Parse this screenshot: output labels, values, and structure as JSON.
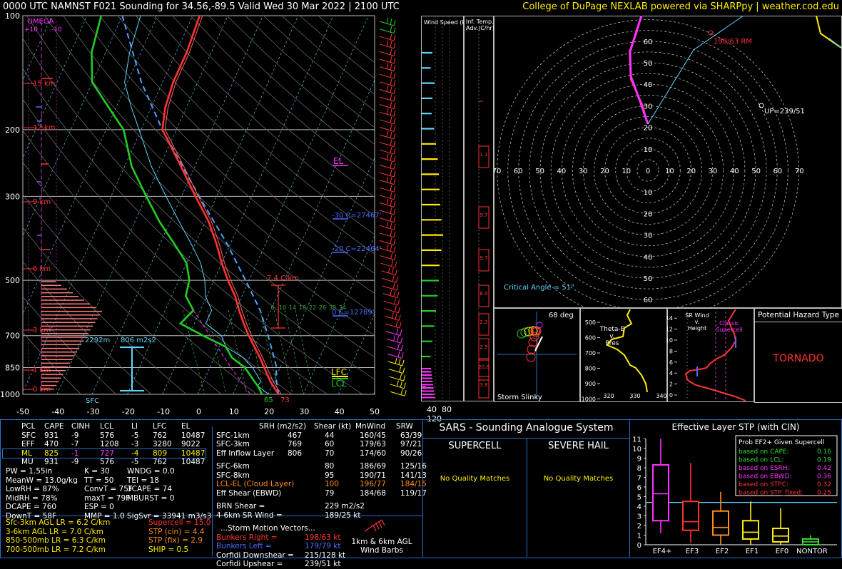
{
  "header": {
    "left": "0000 UTC NAMNST F021 Sounding for 34.56,-89.5 Valid  Wed 30 Mar 2022 | 2100 UTC",
    "right": "College of DuPage NEXLAB powered via SHARPpy | weather.cod.edu"
  },
  "chart_data": [
    {
      "type": "line",
      "name": "skew-t",
      "pressure_ticks": [
        "100",
        "200",
        "300",
        "500",
        "700",
        "850",
        "1000"
      ],
      "temp_ticks": [
        "-50",
        "-40",
        "-30",
        "-20",
        "-10",
        "0",
        "10",
        "20",
        "30",
        "40",
        "50"
      ],
      "height_labels": [
        "15 km",
        "12 km",
        "9 km",
        "6 km",
        "3 km",
        "1 km",
        "0 km"
      ],
      "omega_label": "OMEGA",
      "omega_ticks": [
        "+10",
        "-10"
      ],
      "annotations": {
        "lapse": "7.4 C/km",
        "el": "EL",
        "lfc": "LFC",
        "lcl": "LCL",
        "m30": "-30 C=27467'",
        "m20": "-20 C=22464'",
        "zero": "0 C=12789'",
        "srh_height": "2292m",
        "srh_value": "806 m2s2",
        "sfc": "SFC",
        "sfc_t": "73",
        "sfc_td": "65",
        "mixing": [
          "6",
          "10",
          "14",
          "18",
          "22",
          "26",
          "30",
          "34"
        ]
      },
      "temperature": [
        [
          1000,
          23
        ],
        [
          925,
          19
        ],
        [
          850,
          15.5
        ],
        [
          800,
          13
        ],
        [
          700,
          7
        ],
        [
          650,
          4
        ],
        [
          600,
          1
        ],
        [
          550,
          -2
        ],
        [
          500,
          -6
        ],
        [
          450,
          -10
        ],
        [
          400,
          -14
        ],
        [
          350,
          -19
        ],
        [
          300,
          -26
        ],
        [
          250,
          -34
        ],
        [
          200,
          -44
        ],
        [
          175,
          -46
        ],
        [
          150,
          -47
        ],
        [
          125,
          -47
        ],
        [
          100,
          -48
        ]
      ],
      "dewpoint": [
        [
          1000,
          18.3
        ],
        [
          950,
          16
        ],
        [
          925,
          14.5
        ],
        [
          850,
          10
        ],
        [
          800,
          5
        ],
        [
          750,
          2
        ],
        [
          700,
          -6
        ],
        [
          650,
          -14
        ],
        [
          600,
          -12
        ],
        [
          550,
          -16
        ],
        [
          500,
          -17
        ],
        [
          450,
          -20
        ],
        [
          400,
          -26
        ],
        [
          350,
          -33
        ],
        [
          300,
          -40
        ],
        [
          250,
          -48
        ],
        [
          200,
          -55
        ],
        [
          175,
          -62
        ],
        [
          150,
          -70
        ],
        [
          125,
          -74
        ],
        [
          100,
          -76
        ]
      ],
      "parcel": [
        [
          1000,
          23
        ],
        [
          900,
          20
        ],
        [
          850,
          19
        ],
        [
          800,
          17
        ],
        [
          700,
          12.5
        ],
        [
          600,
          7
        ],
        [
          500,
          -1
        ],
        [
          400,
          -11
        ],
        [
          300,
          -25
        ],
        [
          200,
          -44
        ],
        [
          150,
          -56
        ],
        [
          100,
          -70
        ]
      ]
    },
    {
      "type": "bar",
      "name": "wind-speed",
      "title": "Wind Speed (knots)",
      "ticks": [
        "40",
        "80",
        "120"
      ],
      "values": [
        30,
        25,
        36,
        30,
        28,
        35,
        40,
        45,
        48,
        50,
        52,
        55,
        60,
        55,
        50,
        48,
        45,
        40,
        35,
        30,
        25,
        20,
        12
      ]
    },
    {
      "type": "bar",
      "name": "inferred-temp-advection",
      "title": "Inf. Temp. Adv.(C/hr)",
      "labels": [
        "1.1",
        "9.7",
        "9.7",
        "6.0",
        "2.2",
        "2.5",
        "20.8",
        "3.8"
      ]
    },
    {
      "type": "scatter",
      "name": "hodograph",
      "rings": [
        "10",
        "20",
        "30",
        "40",
        "50",
        "60"
      ],
      "axis_labels": [
        "70",
        "60",
        "50",
        "40",
        "30",
        "20",
        "10",
        "0",
        "10",
        "20",
        "30",
        "40",
        "50",
        "60",
        "70"
      ],
      "rm_label": "198/63 RM",
      "up_label": "UP=239/51",
      "critical_angle": "Critical Angle = 51°"
    },
    {
      "type": "scatter",
      "name": "storm-slinky",
      "title": "Storm Slinky",
      "angle": "68 deg"
    },
    {
      "type": "line",
      "name": "theta-e",
      "title_lines": [
        "Theta-E",
        "v.",
        "Pres"
      ],
      "y_ticks": [
        "500",
        "600",
        "700",
        "800",
        "900",
        "1000"
      ],
      "x_ticks": [
        "320",
        "330",
        "340"
      ]
    },
    {
      "type": "line",
      "name": "sr-wind",
      "title_lines": [
        "SR Wind",
        "v.",
        "Height"
      ],
      "annotation_lines": [
        "Classic",
        "Supercell"
      ],
      "y_ticks": [
        "0",
        "2",
        "4",
        "6",
        "8",
        "10",
        "12",
        "14"
      ]
    },
    {
      "type": "bar",
      "name": "effective-layer-stp",
      "title": "Effective Layer STP (with CIN)",
      "y_ticks": [
        "0",
        "1",
        "2",
        "3",
        "4",
        "5",
        "6",
        "7",
        "8",
        "9",
        "10",
        "11"
      ],
      "categories": [
        "EF4+",
        "EF3",
        "EF2",
        "EF1",
        "EF0",
        "NONTOR"
      ],
      "box": [
        [
          2.5,
          5.3,
          8.3
        ],
        [
          1.5,
          2.4,
          4.5
        ],
        [
          1,
          1.8,
          3.5
        ],
        [
          0.6,
          1.3,
          2.5
        ],
        [
          0.3,
          0.9,
          1.7
        ],
        [
          0,
          0.3,
          0.6
        ]
      ],
      "whisker": [
        [
          1.2,
          11
        ],
        [
          0.2,
          8.5
        ],
        [
          0,
          5.5
        ],
        [
          0,
          4.5
        ],
        [
          0,
          3.8
        ],
        [
          0,
          1
        ]
      ],
      "colors": [
        "#ff33ff",
        "#ff3333",
        "#ff8c1a",
        "#ffee00",
        "#ffee00",
        "#33dd33"
      ],
      "legend_title": "Prob EF2+ Given Supercell",
      "legend": [
        {
          "label": "based on CAPE:",
          "value": "0.16",
          "color": "#33dd33"
        },
        {
          "label": "based on LCL:",
          "value": "0.19",
          "color": "#33dd33"
        },
        {
          "label": "based on ESRH:",
          "value": "0.42",
          "color": "#ff33ff"
        },
        {
          "label": "based on EBWD:",
          "value": "0.36",
          "color": "#ff33ff"
        },
        {
          "label": "based on STPC:",
          "value": "0.32",
          "color": "#ff3333"
        },
        {
          "label": "based on STP_fixed:",
          "value": "0.25",
          "color": "#ff3333"
        }
      ],
      "stp_line": 4.4
    }
  ],
  "parcel_table": {
    "headers": [
      "PCL",
      "CAPE",
      "CINH",
      "LCL",
      "LI",
      "LFC",
      "EL"
    ],
    "rows": [
      [
        "SFC",
        "931",
        "-9",
        "576",
        "-5",
        "762",
        "10487"
      ],
      [
        "EFF",
        "470",
        "-7",
        "1208",
        "-3",
        "3280",
        "9022"
      ],
      [
        "ML",
        "825",
        "-1",
        "727",
        "-4",
        "809",
        "10487"
      ],
      [
        "MU",
        "931",
        "-9",
        "576",
        "-5",
        "762",
        "10487"
      ]
    ]
  },
  "thermo": [
    [
      "PW = 1.55in",
      "K = 30",
      "WNDG = 0.0"
    ],
    [
      "MeanW = 13.0g/kg",
      "TT = 50",
      "TEI = 18"
    ],
    [
      "LowRH = 87%",
      "ConvT = 75F",
      "3CAPE = 74"
    ],
    [
      "MidRH = 78%",
      "maxT = 79F",
      "MBURST = 0"
    ],
    [
      "DCAPE = 760",
      "ESP = 0",
      ""
    ],
    [
      "DownT = 58F",
      "MMP = 1.0",
      "SigSvr = 33941 m3/s3"
    ]
  ],
  "lapse_rates": [
    {
      "text": "Sfc-3km AGL LR = 6.2 C/km"
    },
    {
      "text": "3-6km AGL LR = 7.0 C/km"
    },
    {
      "text": "850-500mb LR = 6.3 C/km"
    },
    {
      "text": "700-500mb LR = 7.2 C/km"
    }
  ],
  "indices": [
    {
      "text": "Supercell = 15.0",
      "color": "#ff3333"
    },
    {
      "text": "STP (cin) = 4.4",
      "color": "#ff8c1a"
    },
    {
      "text": "STP (fix) = 2.9",
      "color": "#ff8c1a"
    },
    {
      "text": "SHIP = 0.5",
      "color": "#ffee00"
    }
  ],
  "kinematics": {
    "headers": [
      "SRH (m2/s2)",
      "Shear (kt)",
      "MnWind",
      "SRW"
    ],
    "rows": [
      {
        "label": "SFC-1km",
        "v": [
          "467",
          "44",
          "160/45",
          "63/39"
        ],
        "color": "#ffffff"
      },
      {
        "label": "SFC-3km",
        "v": [
          "769",
          "60",
          "179/63",
          "97/21"
        ],
        "color": "#ffffff"
      },
      {
        "label": "Eff Inflow Layer",
        "v": [
          "806",
          "70",
          "174/60",
          "90/26"
        ],
        "color": "#ffffff"
      },
      {
        "label": "SFC-6km",
        "v": [
          "80",
          "186/69",
          "125/16"
        ],
        "color": "#ffffff"
      },
      {
        "label": "SFC-8km",
        "v": [
          "95",
          "190/71",
          "141/13"
        ],
        "color": "#ffffff"
      },
      {
        "label": "LCL-EL (Cloud Layer)",
        "v": [
          "100",
          "196/77",
          "184/15"
        ],
        "color": "#ff8c1a"
      },
      {
        "label": "Eff Shear (EBWD)",
        "v": [
          "79",
          "184/68",
          "119/17"
        ],
        "color": "#ffffff"
      }
    ],
    "brn_shear": "BRN Shear =",
    "brn_value": "229 m2/s2",
    "sr_wind": "4-6km SR Wind =",
    "sr_value": "189/25 kt",
    "motion_title": "...Storm Motion Vectors...",
    "motion": [
      {
        "label": "Bunkers Right =",
        "value": "198/63 kt",
        "color": "#ff3333"
      },
      {
        "label": "Bunkers Left =",
        "value": "179/79 kt",
        "color": "#4a6cff"
      },
      {
        "label": "Corfidi Downshear =",
        "value": "215/128 kt",
        "color": "#ffffff"
      },
      {
        "label": "Corfidi Upshear =",
        "value": "239/51 kt",
        "color": "#ffffff"
      }
    ],
    "barbs_lines": [
      "1km & 6km AGL",
      "Wind Barbs"
    ]
  },
  "sars": {
    "title": "SARS - Sounding Analogue System",
    "left_title": "SUPERCELL",
    "right_title": "SEVERE HAIL",
    "left_msg": "No Quality Matches",
    "right_msg": "No Quality Matches"
  },
  "hazard": {
    "title": "Potential Hazard Type",
    "value": "TORNADO"
  }
}
